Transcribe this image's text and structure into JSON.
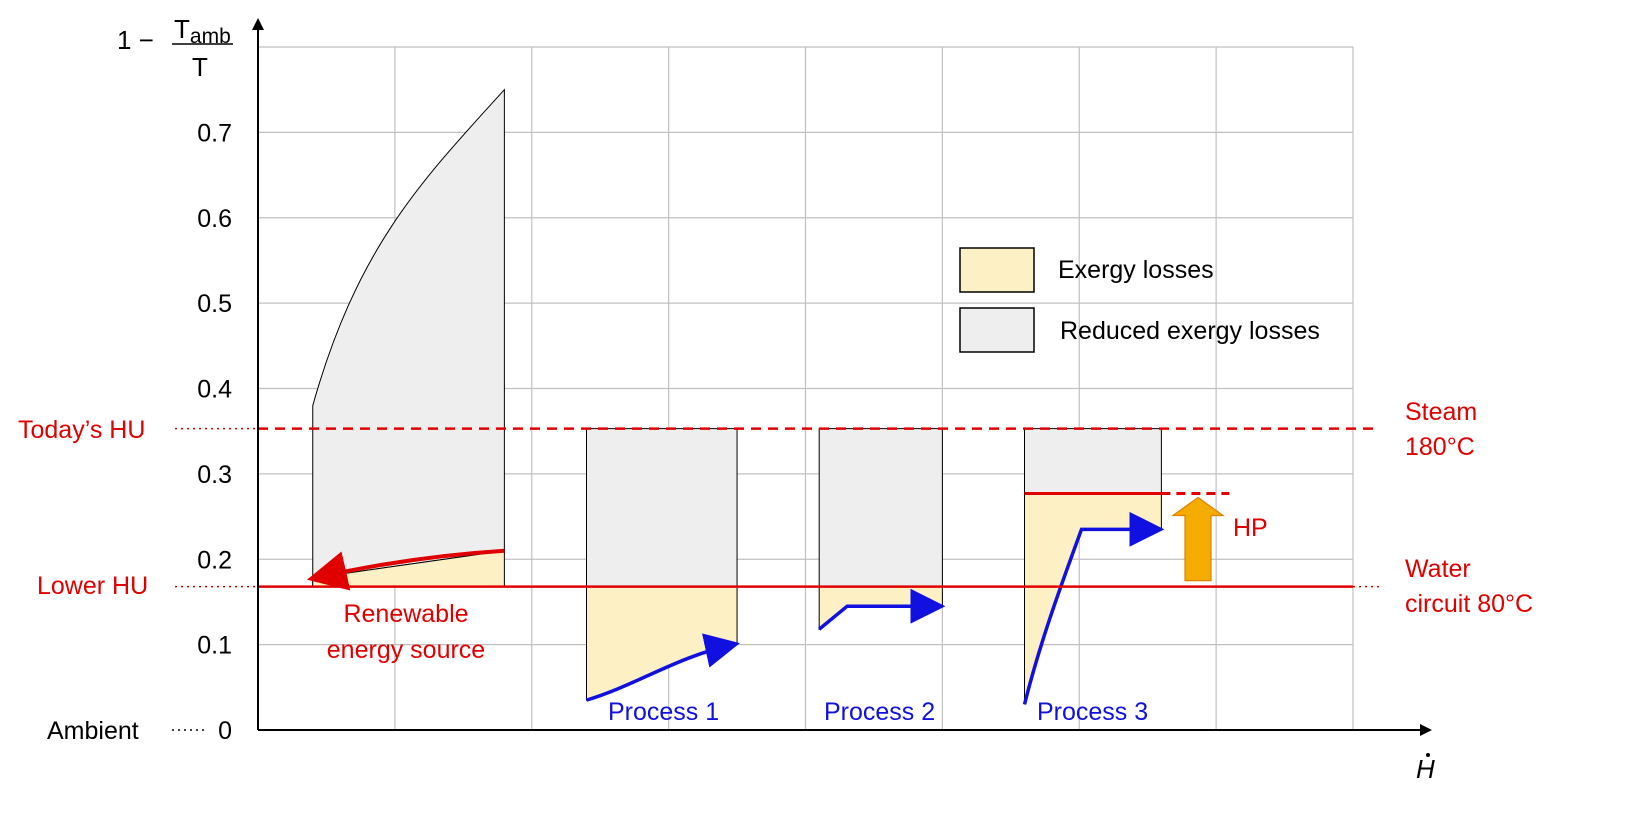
{
  "chart_data": {
    "type": "diagram",
    "y_axis": {
      "label_prefix": "1 −",
      "label_numerator": "T",
      "label_numerator_sub": "amb",
      "label_denominator": "T",
      "ticks": [
        "0",
        "0.1",
        "0.2",
        "0.3",
        "0.4",
        "0.5",
        "0.6",
        "0.7"
      ],
      "range": [
        0,
        0.8
      ]
    },
    "x_axis": {
      "label": "H",
      "range": [
        0,
        8
      ]
    },
    "levels": {
      "todays_hu": {
        "label": "Today’s HU",
        "value": 0.353,
        "right_label": [
          "Steam",
          "180°C"
        ],
        "style": "dashed"
      },
      "lower_hu": {
        "label": "Lower HU",
        "value": 0.168,
        "right_label": [
          "Water",
          "circuit 80°C"
        ],
        "style": "solid"
      },
      "ambient": {
        "label": "Ambient",
        "value": 0
      }
    },
    "legend": [
      {
        "label": "Exergy losses",
        "color": "#fdf0c4"
      },
      {
        "label": "Reduced exergy losses",
        "color": "#eeeeee"
      }
    ],
    "renewable_source": {
      "label": [
        "Renewable",
        "energy source"
      ],
      "x_range": [
        0.4,
        1.8
      ],
      "curve_top": 0.75,
      "curve_start": 0.38,
      "arrow_from": [
        1.8,
        0.21
      ],
      "arrow_to": [
        0.4,
        0.178
      ]
    },
    "processes": [
      {
        "label": "Process 1",
        "x_range": [
          2.4,
          3.5
        ],
        "start": 0.035,
        "end": 0.1
      },
      {
        "label": "Process 2",
        "x_range": [
          4.1,
          5.0
        ],
        "start": 0.118,
        "end": 0.145
      },
      {
        "label": "Process 3",
        "x_range": [
          5.6,
          6.6
        ],
        "start": 0.03,
        "end": 0.235,
        "upgraded_level": 0.277
      }
    ],
    "heat_pump": {
      "label": "HP",
      "from": 0.175,
      "to": 0.27
    },
    "colors": {
      "red": "#e00000",
      "blue": "#1010e0",
      "exergy_loss": "#fdf0c4",
      "reduced_loss": "#eeeeee",
      "heat_pump": "#f5ac00",
      "grid": "#c0c0c0"
    }
  }
}
